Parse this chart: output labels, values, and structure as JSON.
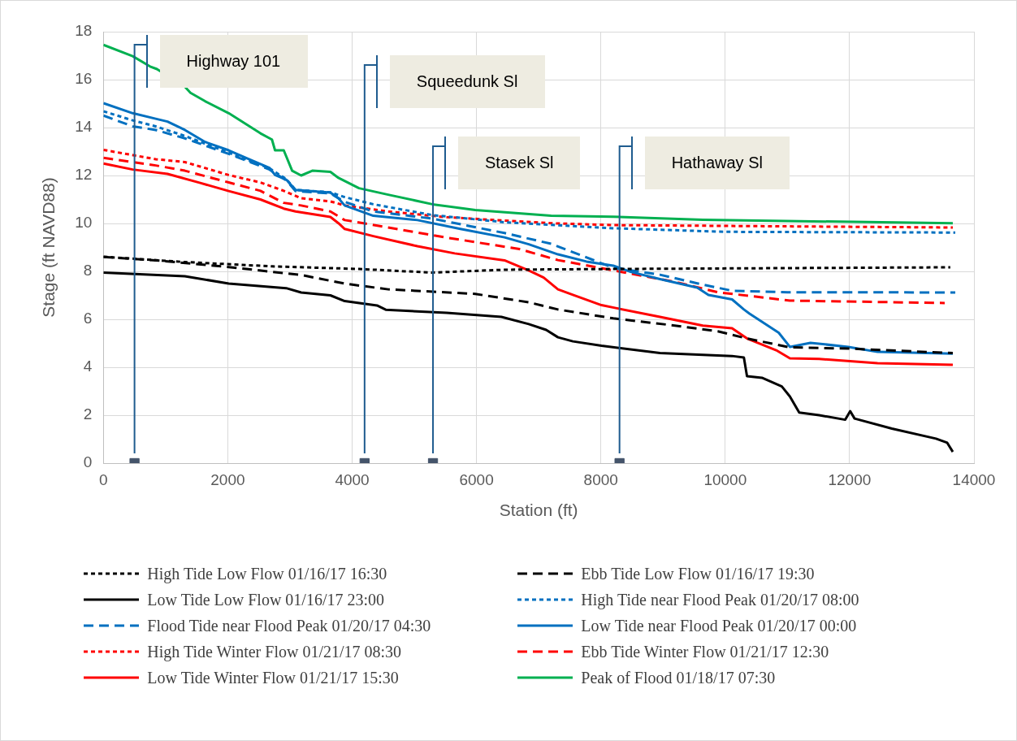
{
  "chart_data": {
    "type": "line",
    "xlabel": "Station (ft)",
    "ylabel": "Stage (ft NAVD88)",
    "xlim": [
      0,
      14000
    ],
    "xticks": [
      0,
      2000,
      4000,
      6000,
      8000,
      10000,
      12000,
      14000
    ],
    "ylim": [
      0,
      18
    ],
    "yticks": [
      0,
      2,
      4,
      6,
      8,
      10,
      12,
      14,
      16,
      18
    ],
    "grid": true,
    "legend": "bottom",
    "marker": "none",
    "series": [
      {
        "name": "High Tide Low Flow 01/16/17 16:30",
        "color": "#000000",
        "line_style": "dotted",
        "x": [
          0,
          1310,
          2710,
          4110,
          5290,
          6450,
          8240,
          13620
        ],
        "values": [
          8.61,
          8.39,
          8.21,
          8.1,
          7.95,
          8.07,
          8.1,
          8.17
        ]
      },
      {
        "name": "Ebb Tide Low Flow 01/16/17 19:30",
        "color": "#000000",
        "line_style": "dashed",
        "x": [
          0,
          840,
          2015,
          3180,
          3880,
          4580,
          5980,
          6840,
          7310,
          8200,
          9190,
          9880,
          10350,
          11040,
          11980,
          13660
        ],
        "values": [
          8.6,
          8.46,
          8.18,
          7.85,
          7.49,
          7.25,
          7.06,
          6.71,
          6.41,
          6.04,
          5.74,
          5.5,
          5.2,
          4.83,
          4.78,
          4.59
        ]
      },
      {
        "name": "Low Tide Low Flow 01/16/17 23:00",
        "color": "#000000",
        "line_style": "solid",
        "x": [
          0,
          1310,
          2015,
          2940,
          3180,
          3650,
          3880,
          4400,
          4540,
          5520,
          6400,
          6840,
          7120,
          7310,
          7550,
          8010,
          8950,
          10110,
          10300,
          10350,
          10590,
          10910,
          11040,
          11190,
          11510,
          11930,
          12010,
          12080,
          12680,
          13390,
          13570,
          13660
        ],
        "values": [
          7.95,
          7.8,
          7.49,
          7.3,
          7.12,
          7.0,
          6.76,
          6.58,
          6.4,
          6.27,
          6.1,
          5.8,
          5.56,
          5.25,
          5.08,
          4.9,
          4.59,
          4.47,
          4.41,
          3.63,
          3.56,
          3.2,
          2.78,
          2.11,
          2.0,
          1.81,
          2.17,
          1.86,
          1.44,
          1.02,
          0.85,
          0.47
        ]
      },
      {
        "name": "High Tide near Flood Peak 01/20/17 08:00",
        "color": "#0070c0",
        "line_style": "dotted",
        "x": [
          0,
          470,
          840,
          1310,
          2015,
          2670,
          2940,
          3090,
          3650,
          3880,
          4340,
          5290,
          6450,
          8200,
          10000,
          13700
        ],
        "values": [
          14.68,
          14.3,
          14.05,
          13.65,
          12.95,
          12.3,
          11.85,
          11.4,
          11.3,
          11.1,
          10.8,
          10.35,
          10.05,
          9.8,
          9.65,
          9.62
        ]
      },
      {
        "name": "Flood Tide near Flood Peak 01/20/17 04:30",
        "color": "#0070c0",
        "line_style": "dashed",
        "x": [
          0,
          470,
          840,
          1310,
          2015,
          2670,
          2940,
          3090,
          3650,
          3880,
          4340,
          5290,
          6450,
          7200,
          8200,
          8950,
          9550,
          10110,
          11000,
          13700
        ],
        "values": [
          14.5,
          14.05,
          13.9,
          13.55,
          12.9,
          12.25,
          11.8,
          11.35,
          11.25,
          10.9,
          10.5,
          10.2,
          9.6,
          9.15,
          8.15,
          7.86,
          7.5,
          7.19,
          7.13,
          7.12
        ]
      },
      {
        "name": "Low Tide near Flood Peak 01/20/17 00:00",
        "color": "#0070c0",
        "line_style": "solid",
        "x": [
          0,
          470,
          840,
          1030,
          1310,
          1635,
          2015,
          2340,
          2670,
          2760,
          2940,
          3090,
          3650,
          3780,
          3880,
          4340,
          5050,
          5740,
          6450,
          6840,
          7310,
          7770,
          8200,
          8480,
          8950,
          9550,
          9730,
          10110,
          10300,
          10390,
          10860,
          11040,
          11370,
          11980,
          12450,
          13660
        ],
        "values": [
          15.02,
          14.6,
          14.37,
          14.25,
          13.9,
          13.4,
          13.05,
          12.68,
          12.32,
          12.02,
          11.83,
          11.4,
          11.29,
          11.05,
          10.75,
          10.32,
          10.14,
          9.77,
          9.42,
          9.13,
          8.71,
          8.41,
          8.24,
          7.98,
          7.68,
          7.32,
          7.02,
          6.83,
          6.41,
          6.24,
          5.44,
          4.85,
          5.02,
          4.85,
          4.64,
          4.57
        ]
      },
      {
        "name": "High Tide Winter Flow 01/21/17 08:30",
        "color": "#ff0000",
        "line_style": "dotted",
        "x": [
          0,
          840,
          1310,
          2015,
          2525,
          2900,
          3180,
          3650,
          3880,
          4580,
          5520,
          7200,
          8200,
          13660
        ],
        "values": [
          13.07,
          12.68,
          12.56,
          12.02,
          11.71,
          11.36,
          11.05,
          10.92,
          10.75,
          10.5,
          10.26,
          10.01,
          9.93,
          9.83
        ]
      },
      {
        "name": "Ebb Tide Winter Flow 01/21/17 12:30",
        "color": "#ff0000",
        "line_style": "dashed",
        "x": [
          0,
          840,
          1310,
          2015,
          2525,
          2900,
          3180,
          3650,
          3880,
          4580,
          5520,
          6690,
          7310,
          8200,
          9190,
          9880,
          11040,
          13530
        ],
        "values": [
          12.74,
          12.42,
          12.2,
          11.71,
          11.36,
          10.86,
          10.75,
          10.5,
          10.14,
          9.83,
          9.41,
          8.93,
          8.47,
          8.04,
          7.56,
          7.13,
          6.78,
          6.68
        ]
      },
      {
        "name": "Low Tide Winter Flow 01/21/17 15:30",
        "color": "#ff0000",
        "line_style": "solid",
        "x": [
          0,
          470,
          1030,
          1545,
          2015,
          2525,
          2900,
          3090,
          3650,
          3780,
          3880,
          4340,
          5050,
          5650,
          6450,
          6840,
          7080,
          7310,
          7550,
          8010,
          8240,
          8950,
          9640,
          10110,
          10350,
          10820,
          11040,
          11510,
          12450,
          13660
        ],
        "values": [
          12.5,
          12.25,
          12.07,
          11.7,
          11.35,
          11.0,
          10.62,
          10.5,
          10.27,
          10.01,
          9.77,
          9.47,
          9.05,
          8.75,
          8.46,
          8.04,
          7.74,
          7.25,
          7.02,
          6.59,
          6.47,
          6.1,
          5.74,
          5.63,
          5.2,
          4.71,
          4.37,
          4.35,
          4.17,
          4.1
        ]
      },
      {
        "name": "Peak of Flood 01/18/17 07:30",
        "color": "#00b050",
        "line_style": "solid",
        "x": [
          0,
          470,
          750,
          860,
          1310,
          1400,
          1635,
          2015,
          2525,
          2710,
          2760,
          2900,
          3035,
          3180,
          3360,
          3650,
          3780,
          4110,
          4580,
          5290,
          5980,
          7200,
          8200,
          9640,
          13660
        ],
        "values": [
          17.45,
          16.98,
          16.55,
          16.44,
          15.7,
          15.45,
          15.1,
          14.6,
          13.76,
          13.5,
          13.05,
          13.05,
          12.2,
          12.0,
          12.2,
          12.15,
          11.9,
          11.47,
          11.2,
          10.8,
          10.56,
          10.32,
          10.28,
          10.15,
          10.01
        ]
      },
      {
        "type": "scatter",
        "color": "#44546a",
        "marker": "square",
        "x": [
          500,
          4200,
          5300,
          8300
        ],
        "values": [
          0,
          0,
          0,
          0
        ]
      }
    ],
    "ref_lines": [
      {
        "axis": "x",
        "value": 500,
        "label": "Highway 101",
        "color": "#1f5c8f"
      },
      {
        "axis": "x",
        "value": 4200,
        "label": "Squeedunk Sl",
        "color": "#1f5c8f"
      },
      {
        "axis": "x",
        "value": 5300,
        "label": "Stasek Sl",
        "color": "#1f5c8f"
      },
      {
        "axis": "x",
        "value": 8300,
        "label": "Hathaway Sl",
        "color": "#1f5c8f"
      }
    ]
  }
}
